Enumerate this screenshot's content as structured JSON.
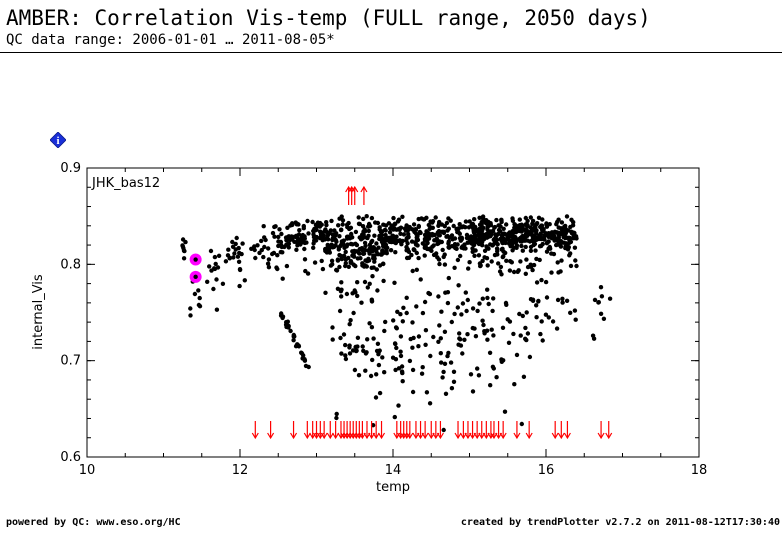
{
  "header": {
    "title": "AMBER: Correlation Vis-temp (FULL range, 2050 days)",
    "subtitle": "QC data range: 2006-01-01 … 2011-08-05*"
  },
  "info_button": {
    "icon": "info-diamond-icon",
    "glyph": "i",
    "color": "#1a2fd8"
  },
  "footer": {
    "left": "powered by QC: www.eso.org/HC",
    "right": "created by trendPlotter v2.7.2 on 2011-08-12T17:30:40"
  },
  "colors": {
    "points": "#000000",
    "highlight": "#ff00ff",
    "limit_arrows": "#ff0000"
  },
  "chart_data": {
    "type": "scatter",
    "panel_label": "JHK_bas12",
    "xlabel": "temp",
    "ylabel": "internal_Vis",
    "xlim": [
      10,
      18
    ],
    "ylim": [
      0.6,
      0.9
    ],
    "x_ticks": [
      "10",
      "12",
      "14",
      "16",
      "18"
    ],
    "y_ticks": [
      "0.6",
      "0.7",
      "0.8",
      "0.9"
    ],
    "highlighted_points": [
      {
        "x": 11.42,
        "y": 0.805
      },
      {
        "x": 11.42,
        "y": 0.787
      }
    ],
    "cluster_bands": [
      {
        "x_range": [
          11.15,
          11.3
        ],
        "y_range": [
          0.8,
          0.83
        ],
        "n": 8
      },
      {
        "x_range": [
          11.35,
          11.5
        ],
        "y_range": [
          0.69,
          0.81
        ],
        "n": 10
      },
      {
        "x_range": [
          11.55,
          11.8
        ],
        "y_range": [
          0.73,
          0.82
        ],
        "n": 14
      },
      {
        "x_range": [
          11.8,
          12.3
        ],
        "y_range": [
          0.77,
          0.83
        ],
        "n": 30
      },
      {
        "x_range": [
          12.3,
          12.6
        ],
        "y_range": [
          0.78,
          0.84
        ],
        "n": 30
      },
      {
        "x_range": [
          12.6,
          13.1
        ],
        "y_range": [
          0.79,
          0.85
        ],
        "n": 90
      },
      {
        "x_range": [
          12.55,
          12.9
        ],
        "y_range": [
          0.69,
          0.75
        ],
        "n": 30,
        "diagonal": true
      },
      {
        "x_range": [
          13.1,
          13.9
        ],
        "y_range": [
          0.76,
          0.85
        ],
        "n": 230
      },
      {
        "x_range": [
          13.2,
          13.9
        ],
        "y_range": [
          0.63,
          0.76
        ],
        "n": 50
      },
      {
        "x_range": [
          13.9,
          15.0
        ],
        "y_range": [
          0.78,
          0.85
        ],
        "n": 230
      },
      {
        "x_range": [
          14.0,
          14.8
        ],
        "y_range": [
          0.6,
          0.78
        ],
        "n": 70
      },
      {
        "x_range": [
          15.0,
          15.8
        ],
        "y_range": [
          0.79,
          0.85
        ],
        "n": 260
      },
      {
        "x_range": [
          14.8,
          15.8
        ],
        "y_range": [
          0.61,
          0.79
        ],
        "n": 70
      },
      {
        "x_range": [
          15.8,
          16.4
        ],
        "y_range": [
          0.79,
          0.85
        ],
        "n": 170
      },
      {
        "x_range": [
          15.8,
          16.4
        ],
        "y_range": [
          0.7,
          0.79
        ],
        "n": 25
      },
      {
        "x_range": [
          16.6,
          16.85
        ],
        "y_range": [
          0.72,
          0.78
        ],
        "n": 10
      }
    ],
    "upper_limit_arrows_x": [
      13.42,
      13.46,
      13.5,
      13.62
    ],
    "lower_limit_arrows_x": [
      12.2,
      12.4,
      12.7,
      12.88,
      12.95,
      13.0,
      13.05,
      13.1,
      13.18,
      13.25,
      13.32,
      13.36,
      13.4,
      13.44,
      13.48,
      13.52,
      13.56,
      13.6,
      13.66,
      13.72,
      13.78,
      13.85,
      14.05,
      14.1,
      14.14,
      14.18,
      14.22,
      14.3,
      14.36,
      14.42,
      14.5,
      14.56,
      14.62,
      14.85,
      14.92,
      14.98,
      15.04,
      15.1,
      15.16,
      15.22,
      15.28,
      15.32,
      15.38,
      15.44,
      15.62,
      15.78,
      16.12,
      16.2,
      16.28,
      16.72,
      16.82
    ]
  }
}
